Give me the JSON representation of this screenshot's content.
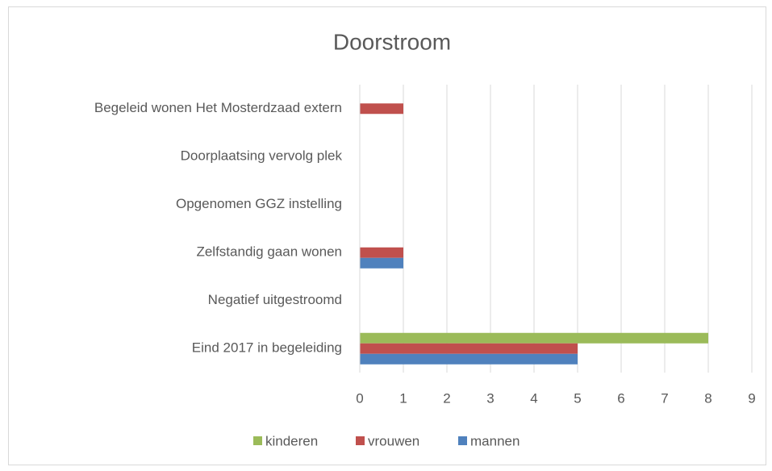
{
  "chart_data": {
    "type": "barh",
    "title": "Doorstroom",
    "categories": [
      "Begeleid wonen Het Mosterdzaad extern",
      "Doorplaatsing vervolg plek",
      "Opgenomen GGZ instelling",
      "Zelfstandig gaan wonen",
      "Negatief uitgestroomd",
      "Eind 2017 in begeleiding"
    ],
    "series": [
      {
        "name": "kinderen",
        "color": "#9bbb59",
        "values": [
          0,
          0,
          0,
          0,
          0,
          8
        ]
      },
      {
        "name": "vrouwen",
        "color": "#c0504d",
        "values": [
          1,
          0,
          0,
          1,
          0,
          5
        ]
      },
      {
        "name": "mannen",
        "color": "#4f81bd",
        "values": [
          0,
          0,
          0,
          1,
          0,
          5
        ]
      }
    ],
    "xlim": [
      0,
      9
    ],
    "xticks": [
      0,
      1,
      2,
      3,
      4,
      5,
      6,
      7,
      8,
      9
    ],
    "grid": true,
    "legend": "bottom"
  }
}
